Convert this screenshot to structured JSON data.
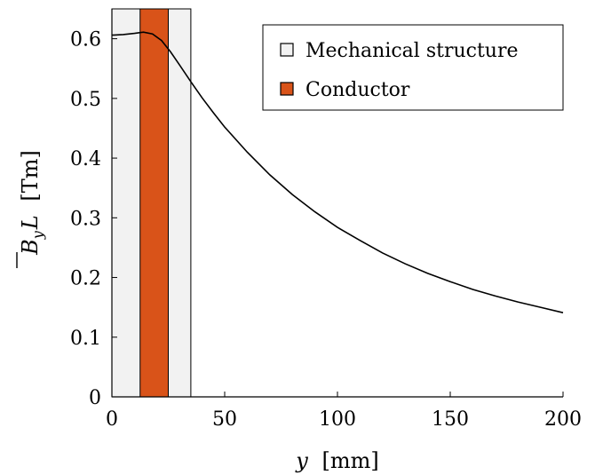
{
  "chart_data": {
    "type": "line",
    "title": "",
    "xlabel": {
      "var": "y",
      "unit": "[mm]"
    },
    "ylabel": {
      "bar_var": "B",
      "sub": "y",
      "after": "L",
      "unit": "[Tm]"
    },
    "xlim": [
      0,
      200
    ],
    "ylim": [
      0,
      0.65
    ],
    "xticks": [
      0,
      50,
      100,
      150,
      200
    ],
    "yticks": [
      0,
      0.1,
      0.2,
      0.3,
      0.4,
      0.5,
      0.6
    ],
    "grid": false,
    "legend_position": "top-right",
    "regions": [
      {
        "name": "Mechanical structure",
        "x_start": 0,
        "x_end": 35,
        "color": "#f2f2f2"
      },
      {
        "name": "Conductor",
        "x_start": 12.5,
        "x_end": 25,
        "color": "#d95319"
      }
    ],
    "series": [
      {
        "color": "#000000",
        "x": [
          0,
          5,
          10,
          14,
          18,
          22,
          26,
          30,
          35,
          40,
          45,
          50,
          60,
          70,
          80,
          90,
          100,
          110,
          120,
          130,
          140,
          150,
          160,
          170,
          180,
          190,
          200
        ],
        "y": [
          0.606,
          0.607,
          0.609,
          0.611,
          0.608,
          0.597,
          0.578,
          0.556,
          0.528,
          0.501,
          0.476,
          0.452,
          0.41,
          0.372,
          0.339,
          0.31,
          0.284,
          0.262,
          0.241,
          0.223,
          0.207,
          0.193,
          0.18,
          0.169,
          0.159,
          0.15,
          0.141
        ]
      }
    ]
  }
}
